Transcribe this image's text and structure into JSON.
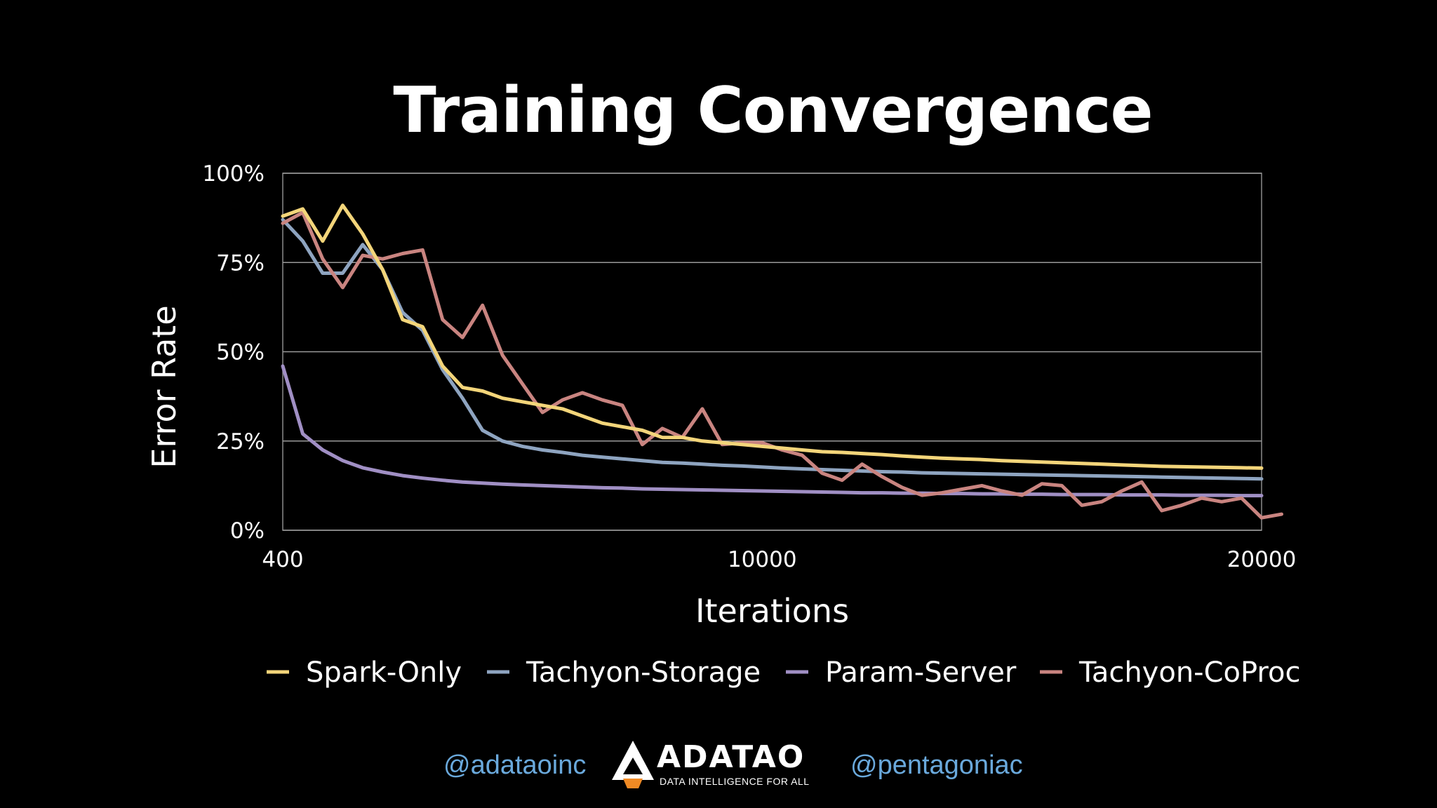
{
  "chart_data": {
    "type": "line",
    "title": "Training Convergence",
    "xlabel": "Iterations",
    "ylabel": "Error Rate",
    "xlim": [
      400,
      20000
    ],
    "ylim": [
      0,
      100
    ],
    "x_ticks": [
      "400",
      "10000",
      "20000"
    ],
    "y_ticks": [
      "0%",
      "25%",
      "50%",
      "75%",
      "100%"
    ],
    "grid": "horizontal",
    "legend_position": "bottom",
    "series": [
      {
        "name": "Spark-Only",
        "color": "#f3d57a",
        "points": [
          [
            400,
            88
          ],
          [
            800,
            90
          ],
          [
            1200,
            81
          ],
          [
            1600,
            91
          ],
          [
            2000,
            83
          ],
          [
            2400,
            73
          ],
          [
            2800,
            59
          ],
          [
            3200,
            57
          ],
          [
            3600,
            46
          ],
          [
            4000,
            40
          ],
          [
            4400,
            39
          ],
          [
            4800,
            37
          ],
          [
            5200,
            36
          ],
          [
            5600,
            35
          ],
          [
            6000,
            34
          ],
          [
            6400,
            32
          ],
          [
            6800,
            30
          ],
          [
            7200,
            29
          ],
          [
            7600,
            28
          ],
          [
            8000,
            26
          ],
          [
            8400,
            26
          ],
          [
            8800,
            25
          ],
          [
            9200,
            24.5
          ],
          [
            9600,
            24
          ],
          [
            10000,
            23.5
          ],
          [
            10400,
            23
          ],
          [
            10800,
            22.5
          ],
          [
            11200,
            22
          ],
          [
            11600,
            21.8
          ],
          [
            12000,
            21.5
          ],
          [
            12400,
            21.2
          ],
          [
            12800,
            20.8
          ],
          [
            13200,
            20.5
          ],
          [
            13600,
            20.2
          ],
          [
            14000,
            20
          ],
          [
            14400,
            19.8
          ],
          [
            14800,
            19.5
          ],
          [
            15200,
            19.3
          ],
          [
            15600,
            19.1
          ],
          [
            16000,
            18.9
          ],
          [
            16400,
            18.7
          ],
          [
            16800,
            18.5
          ],
          [
            17200,
            18.3
          ],
          [
            17600,
            18.1
          ],
          [
            18000,
            17.9
          ],
          [
            18400,
            17.8
          ],
          [
            18800,
            17.7
          ],
          [
            19200,
            17.6
          ],
          [
            19600,
            17.5
          ],
          [
            20000,
            17.4
          ]
        ]
      },
      {
        "name": "Tachyon-Storage",
        "color": "#8ea4c0",
        "points": [
          [
            400,
            87
          ],
          [
            800,
            81
          ],
          [
            1200,
            72
          ],
          [
            1600,
            72
          ],
          [
            2000,
            80
          ],
          [
            2400,
            73
          ],
          [
            2800,
            61
          ],
          [
            3200,
            56
          ],
          [
            3600,
            45
          ],
          [
            4000,
            37
          ],
          [
            4400,
            28
          ],
          [
            4800,
            25
          ],
          [
            5200,
            23.5
          ],
          [
            5600,
            22.5
          ],
          [
            6000,
            21.8
          ],
          [
            6400,
            21
          ],
          [
            6800,
            20.5
          ],
          [
            7200,
            20
          ],
          [
            7600,
            19.5
          ],
          [
            8000,
            19
          ],
          [
            8400,
            18.8
          ],
          [
            8800,
            18.5
          ],
          [
            9200,
            18.2
          ],
          [
            9600,
            18
          ],
          [
            10000,
            17.7
          ],
          [
            10400,
            17.4
          ],
          [
            10800,
            17.2
          ],
          [
            11200,
            17
          ],
          [
            11600,
            16.8
          ],
          [
            12000,
            16.6
          ],
          [
            12400,
            16.4
          ],
          [
            12800,
            16.3
          ],
          [
            13200,
            16.1
          ],
          [
            13600,
            16
          ],
          [
            14000,
            15.9
          ],
          [
            14400,
            15.8
          ],
          [
            14800,
            15.7
          ],
          [
            15200,
            15.6
          ],
          [
            15600,
            15.5
          ],
          [
            16000,
            15.4
          ],
          [
            16400,
            15.3
          ],
          [
            16800,
            15.2
          ],
          [
            17200,
            15.1
          ],
          [
            17600,
            15
          ],
          [
            18000,
            14.9
          ],
          [
            18400,
            14.8
          ],
          [
            18800,
            14.7
          ],
          [
            19200,
            14.6
          ],
          [
            19600,
            14.5
          ],
          [
            20000,
            14.4
          ]
        ]
      },
      {
        "name": "Param-Server",
        "color": "#a08fc4",
        "points": [
          [
            400,
            46
          ],
          [
            800,
            27
          ],
          [
            1200,
            22.5
          ],
          [
            1600,
            19.5
          ],
          [
            2000,
            17.5
          ],
          [
            2400,
            16.3
          ],
          [
            2800,
            15.3
          ],
          [
            3200,
            14.6
          ],
          [
            3600,
            14
          ],
          [
            4000,
            13.5
          ],
          [
            4400,
            13.2
          ],
          [
            4800,
            12.9
          ],
          [
            5200,
            12.7
          ],
          [
            5600,
            12.5
          ],
          [
            6000,
            12.3
          ],
          [
            6400,
            12.1
          ],
          [
            6800,
            11.9
          ],
          [
            7200,
            11.8
          ],
          [
            7600,
            11.6
          ],
          [
            8000,
            11.5
          ],
          [
            8400,
            11.4
          ],
          [
            8800,
            11.3
          ],
          [
            9200,
            11.2
          ],
          [
            9600,
            11.1
          ],
          [
            10000,
            11
          ],
          [
            10400,
            10.9
          ],
          [
            10800,
            10.8
          ],
          [
            11200,
            10.7
          ],
          [
            11600,
            10.6
          ],
          [
            12000,
            10.5
          ],
          [
            12400,
            10.5
          ],
          [
            12800,
            10.4
          ],
          [
            13200,
            10.4
          ],
          [
            13600,
            10.3
          ],
          [
            14000,
            10.3
          ],
          [
            14400,
            10.2
          ],
          [
            14800,
            10.2
          ],
          [
            15200,
            10.1
          ],
          [
            15600,
            10.1
          ],
          [
            16000,
            10
          ],
          [
            16400,
            10
          ],
          [
            16800,
            10
          ],
          [
            17200,
            9.9
          ],
          [
            17600,
            9.9
          ],
          [
            18000,
            9.9
          ],
          [
            18400,
            9.8
          ],
          [
            18800,
            9.8
          ],
          [
            19200,
            9.8
          ],
          [
            19600,
            9.7
          ],
          [
            20000,
            9.7
          ]
        ]
      },
      {
        "name": "Tachyon-CoProc",
        "color": "#c98480",
        "points": [
          [
            400,
            86
          ],
          [
            800,
            89
          ],
          [
            1200,
            76
          ],
          [
            1600,
            68
          ],
          [
            2000,
            77
          ],
          [
            2400,
            76
          ],
          [
            2800,
            77.5
          ],
          [
            3200,
            78.5
          ],
          [
            3600,
            59
          ],
          [
            4000,
            54
          ],
          [
            4400,
            63
          ],
          [
            4800,
            49
          ],
          [
            5200,
            41
          ],
          [
            5600,
            33
          ],
          [
            6000,
            36.5
          ],
          [
            6400,
            38.5
          ],
          [
            6800,
            36.5
          ],
          [
            7200,
            35
          ],
          [
            7600,
            24
          ],
          [
            8000,
            28.5
          ],
          [
            8400,
            26
          ],
          [
            8800,
            34
          ],
          [
            9200,
            24
          ],
          [
            9600,
            24.5
          ],
          [
            10000,
            24.5
          ],
          [
            10400,
            22.5
          ],
          [
            10800,
            21
          ],
          [
            11200,
            16
          ],
          [
            11600,
            14
          ],
          [
            12000,
            18.5
          ],
          [
            12400,
            15
          ],
          [
            12800,
            12
          ],
          [
            13200,
            9.8
          ],
          [
            13600,
            10.5
          ],
          [
            14000,
            11.5
          ],
          [
            14400,
            12.5
          ],
          [
            14800,
            11
          ],
          [
            15200,
            9.8
          ],
          [
            15600,
            13
          ],
          [
            16000,
            12.5
          ],
          [
            16400,
            7
          ],
          [
            16800,
            8
          ],
          [
            17200,
            11
          ],
          [
            17600,
            13.5
          ],
          [
            18000,
            5.5
          ],
          [
            18400,
            7
          ],
          [
            18800,
            9
          ],
          [
            19200,
            8
          ],
          [
            19600,
            9
          ],
          [
            20000,
            3.5
          ],
          [
            20400,
            4.5
          ]
        ]
      }
    ]
  },
  "footer": {
    "handle_left": "@adataoinc",
    "handle_right": "@pentagoniac",
    "logo_text": "ADATAO",
    "logo_tagline": "DATA INTELLIGENCE FOR ALL"
  }
}
